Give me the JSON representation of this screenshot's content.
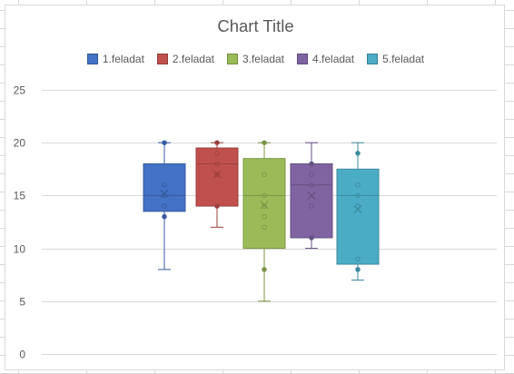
{
  "chart_data": {
    "type": "boxplot",
    "title": "Chart Title",
    "xlabel": "",
    "ylabel": "",
    "ylim": [
      0,
      25
    ],
    "yticks": [
      0,
      5,
      10,
      15,
      20,
      25
    ],
    "grid": true,
    "legend_position": "top",
    "series": [
      {
        "name": "1.feladat",
        "color": "#4472c4",
        "whisker_min": 8,
        "q1": 13.5,
        "median": 15,
        "q3": 18,
        "whisker_max": 20,
        "mean": 15.2,
        "points": [
          20,
          16,
          15,
          14,
          13
        ]
      },
      {
        "name": "2.feladat",
        "color": "#c0504d",
        "whisker_min": 12,
        "q1": 14,
        "median": 18,
        "q3": 19.5,
        "whisker_max": 20,
        "mean": 17,
        "points": [
          20,
          19,
          18,
          17,
          14
        ]
      },
      {
        "name": "3.feladat",
        "color": "#9bbb59",
        "whisker_min": 5,
        "q1": 10,
        "median": 15,
        "q3": 18.5,
        "whisker_max": 20,
        "mean": 14.1,
        "points": [
          20,
          17,
          15,
          14,
          13,
          12,
          8
        ]
      },
      {
        "name": "4.feladat",
        "color": "#8064a2",
        "whisker_min": 10,
        "q1": 11,
        "median": 16,
        "q3": 18,
        "whisker_max": 20,
        "mean": 15,
        "points": [
          18,
          17,
          16,
          14,
          11
        ]
      },
      {
        "name": "5.feladat",
        "color": "#4bacc6",
        "whisker_min": 7,
        "q1": 8.5,
        "median": 15,
        "q3": 17.5,
        "whisker_max": 20,
        "mean": 13.7,
        "points": [
          19,
          16,
          15,
          14,
          9,
          8
        ]
      }
    ]
  }
}
